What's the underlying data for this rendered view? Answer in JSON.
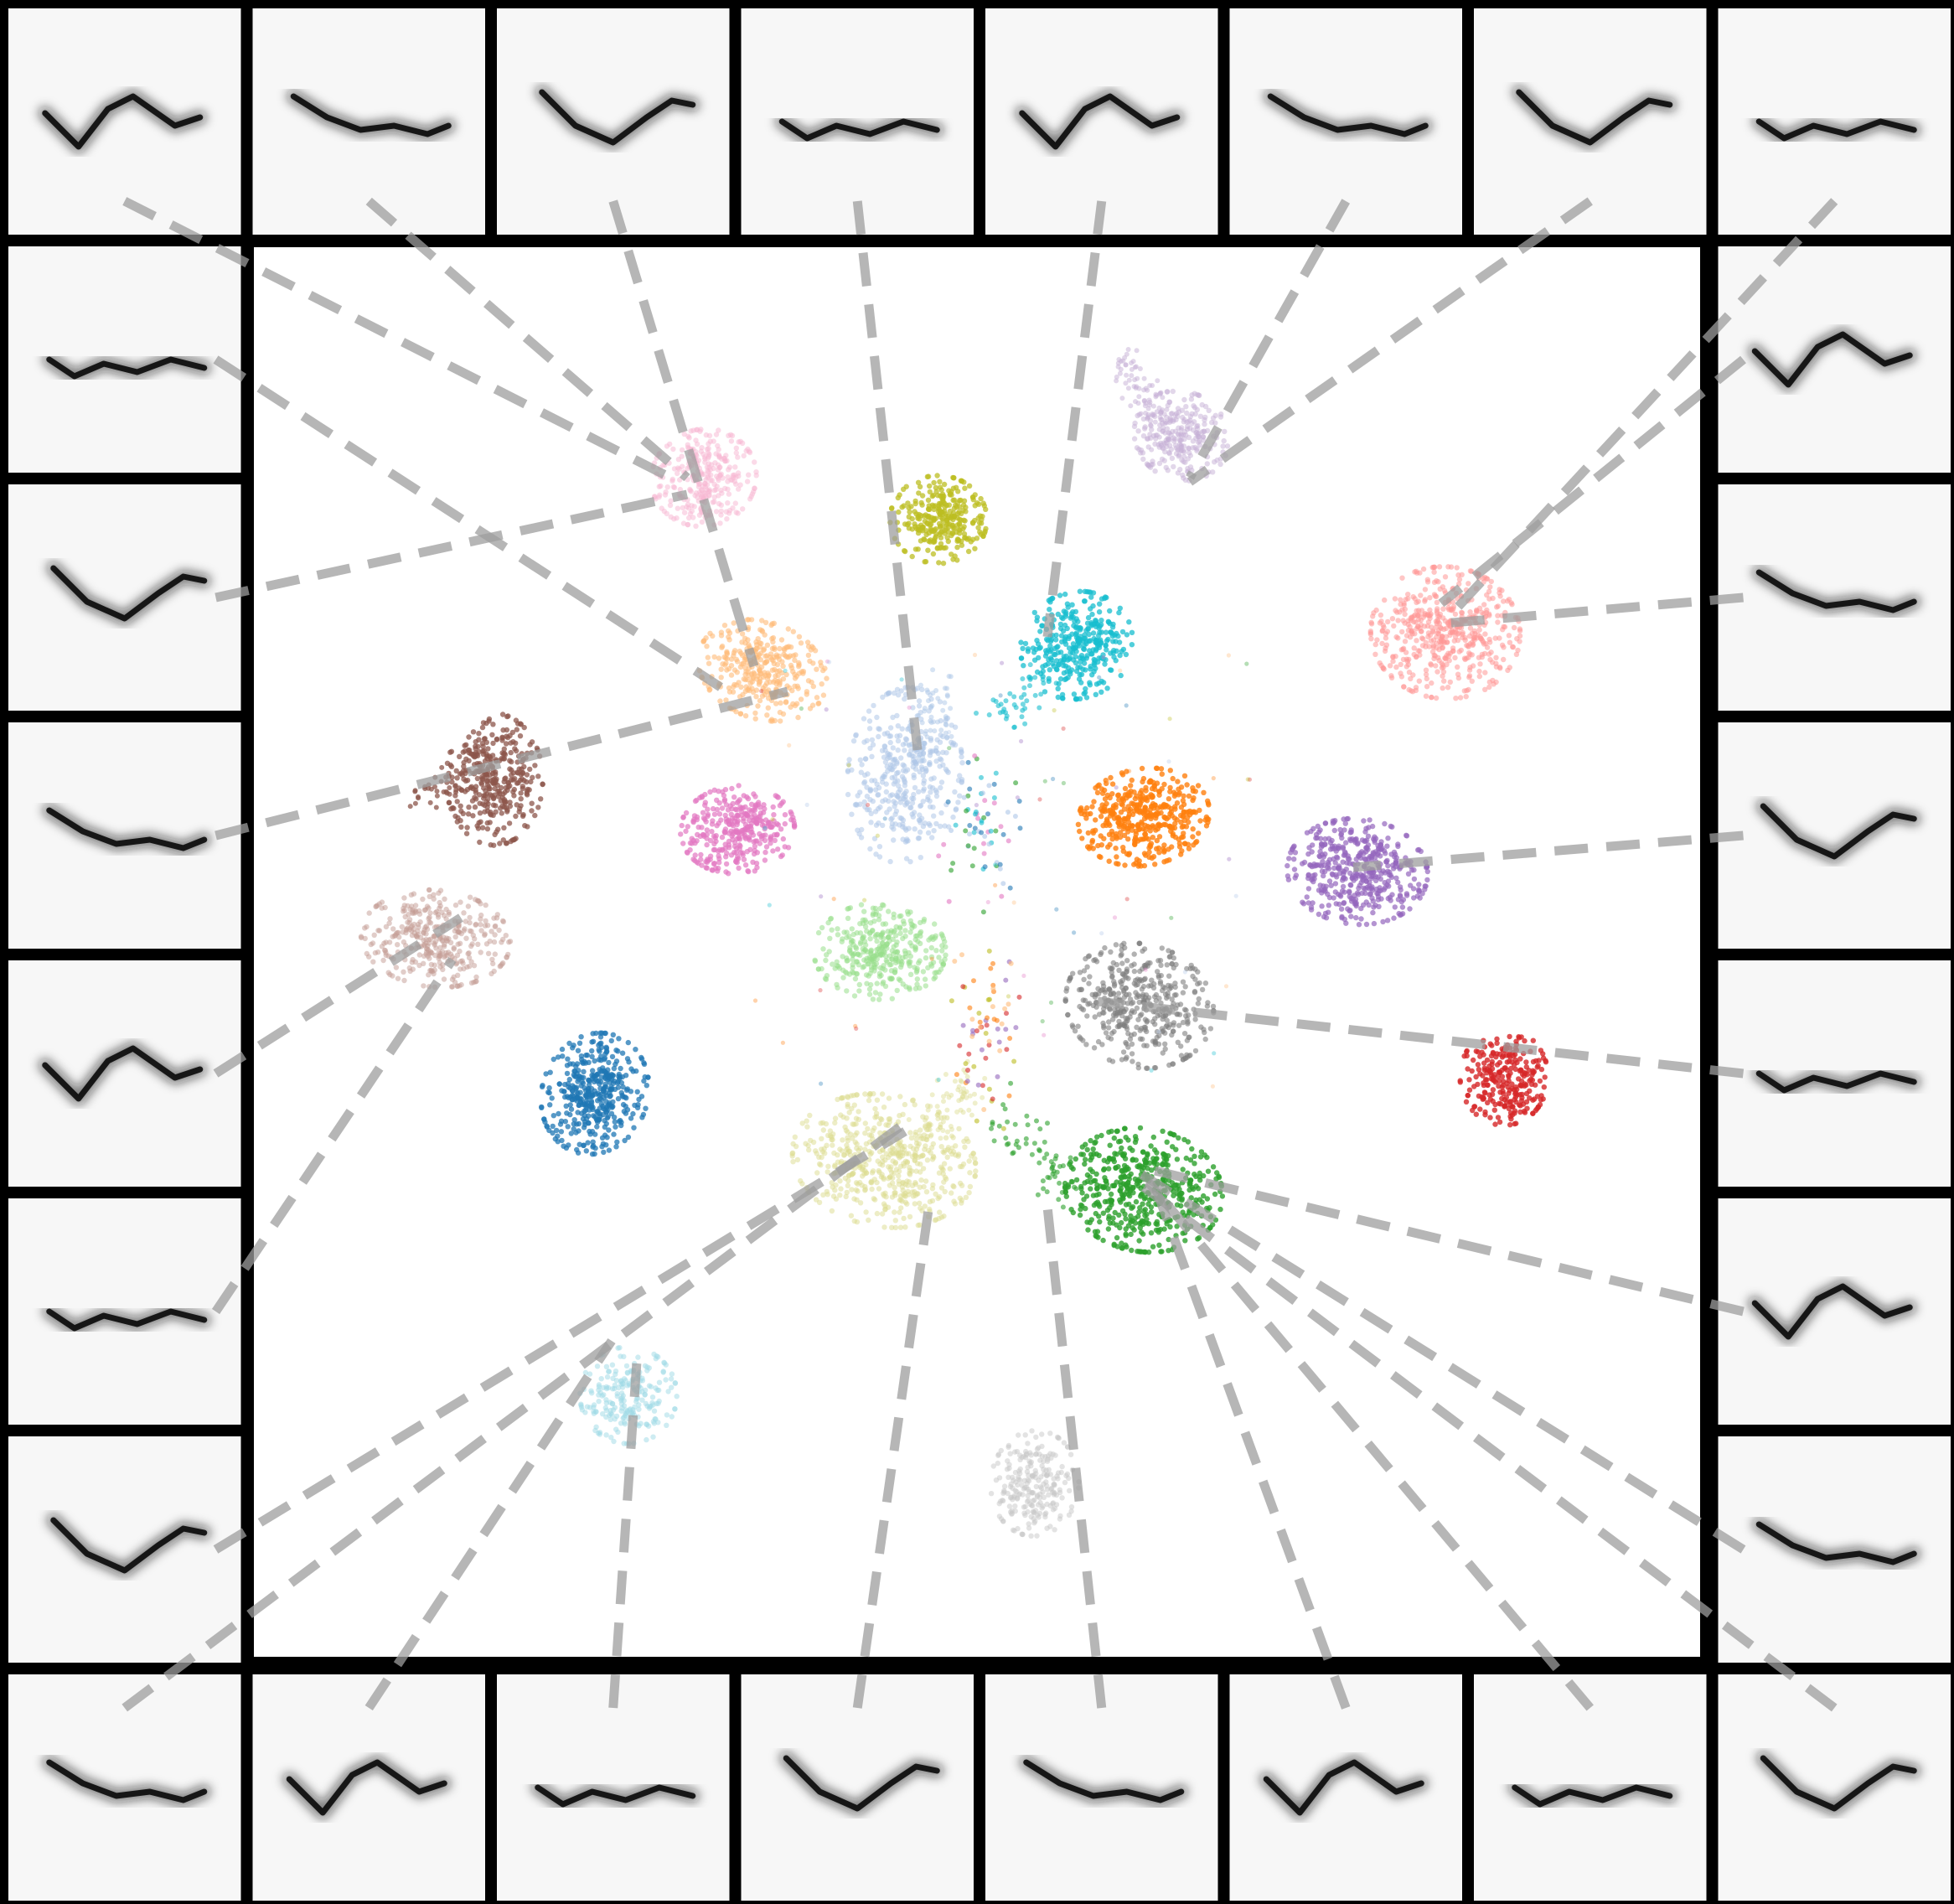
{
  "figure": {
    "background": "#000000",
    "plot_background": "#ffffff",
    "thumbnail_background": "#f7f7f7",
    "connector_color": "#9e9e9e",
    "grid_columns": 8,
    "grid_rows": 8,
    "thumbnail_count": 28,
    "cluster_count": 20
  },
  "clusters": [
    {
      "id": "c01",
      "color": "#1f77b4"
    },
    {
      "id": "c02",
      "color": "#aec7e8"
    },
    {
      "id": "c03",
      "color": "#ff7f0e"
    },
    {
      "id": "c04",
      "color": "#ffbb78"
    },
    {
      "id": "c05",
      "color": "#2ca02c"
    },
    {
      "id": "c06",
      "color": "#98df8a"
    },
    {
      "id": "c07",
      "color": "#d62728"
    },
    {
      "id": "c08",
      "color": "#ff9896"
    },
    {
      "id": "c09",
      "color": "#9467bd"
    },
    {
      "id": "c10",
      "color": "#c5b0d5"
    },
    {
      "id": "c11",
      "color": "#8c564b"
    },
    {
      "id": "c12",
      "color": "#c49c94"
    },
    {
      "id": "c13",
      "color": "#e377c2"
    },
    {
      "id": "c14",
      "color": "#f7b6d2"
    },
    {
      "id": "c15",
      "color": "#7f7f7f"
    },
    {
      "id": "c16",
      "color": "#c7c7c7"
    },
    {
      "id": "c17",
      "color": "#bcbd22"
    },
    {
      "id": "c18",
      "color": "#dbdb8d"
    },
    {
      "id": "c19",
      "color": "#17becf"
    },
    {
      "id": "c20",
      "color": "#9edae5"
    }
  ]
}
